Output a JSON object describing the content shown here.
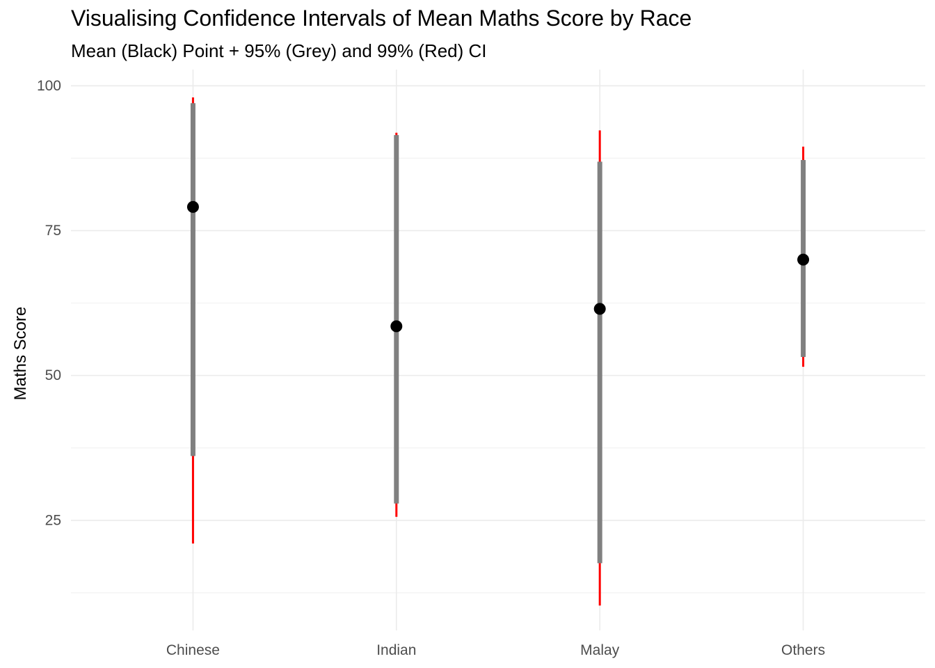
{
  "chart_data": {
    "type": "errorbar",
    "title": "Visualising Confidence Intervals of Mean Maths Score by Race",
    "subtitle": "Mean (Black) Point + 95% (Grey) and 99% (Red) CI",
    "xlabel": "",
    "ylabel": "Maths Score",
    "categories": [
      "Chinese",
      "Indian",
      "Malay",
      "Others"
    ],
    "y_ticks": [
      25,
      50,
      75,
      100
    ],
    "ylim": [
      6,
      102.8
    ],
    "grid": true,
    "means": [
      79.1,
      58.5,
      61.5,
      70.0
    ],
    "ci95": [
      [
        36.1,
        97.0
      ],
      [
        27.9,
        91.5
      ],
      [
        17.6,
        86.9
      ],
      [
        53.2,
        87.2
      ]
    ],
    "ci99": [
      [
        21.0,
        98.0
      ],
      [
        25.6,
        91.9
      ],
      [
        10.3,
        92.3
      ],
      [
        51.5,
        89.5
      ]
    ],
    "colors": {
      "mean": "#000000",
      "ci95": "#808080",
      "ci99": "#ff0000",
      "grid_major": "#ebebeb",
      "grid_minor": "#f2f2f2",
      "tick_text": "#4d4d4d"
    }
  }
}
